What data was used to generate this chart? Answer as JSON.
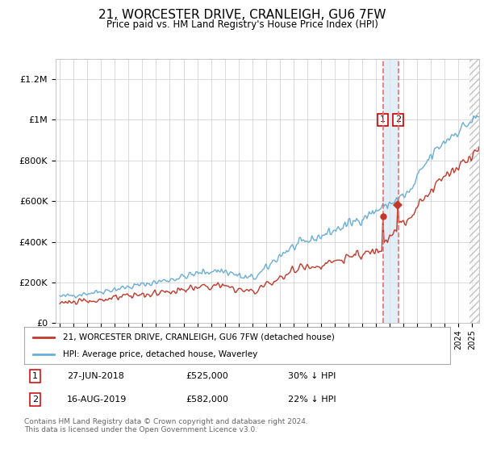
{
  "title": "21, WORCESTER DRIVE, CRANLEIGH, GU6 7FW",
  "subtitle": "Price paid vs. HM Land Registry's House Price Index (HPI)",
  "ylim": [
    0,
    1300000
  ],
  "yticks": [
    0,
    200000,
    400000,
    600000,
    800000,
    1000000,
    1200000
  ],
  "ytick_labels": [
    "£0",
    "£200K",
    "£400K",
    "£600K",
    "£800K",
    "£1M",
    "£1.2M"
  ],
  "hpi_color": "#6aaed6",
  "price_color": "#c0392b",
  "dashed_line_color": "#e87070",
  "shade_color": "#d8e8f5",
  "grid_color": "#cccccc",
  "background_color": "#ffffff",
  "legend_label_red": "21, WORCESTER DRIVE, CRANLEIGH, GU6 7FW (detached house)",
  "legend_label_blue": "HPI: Average price, detached house, Waverley",
  "annotation_1_date": "27-JUN-2018",
  "annotation_1_price": "£525,000",
  "annotation_1_hpi": "30% ↓ HPI",
  "annotation_2_date": "16-AUG-2019",
  "annotation_2_price": "£582,000",
  "annotation_2_hpi": "22% ↓ HPI",
  "footnote": "Contains HM Land Registry data © Crown copyright and database right 2024.\nThis data is licensed under the Open Government Licence v3.0.",
  "sale_1_year": 2018.5,
  "sale_1_price": 525000,
  "sale_2_year": 2019.62,
  "sale_2_price": 582000,
  "xmin": 1995.0,
  "xmax": 2025.5
}
